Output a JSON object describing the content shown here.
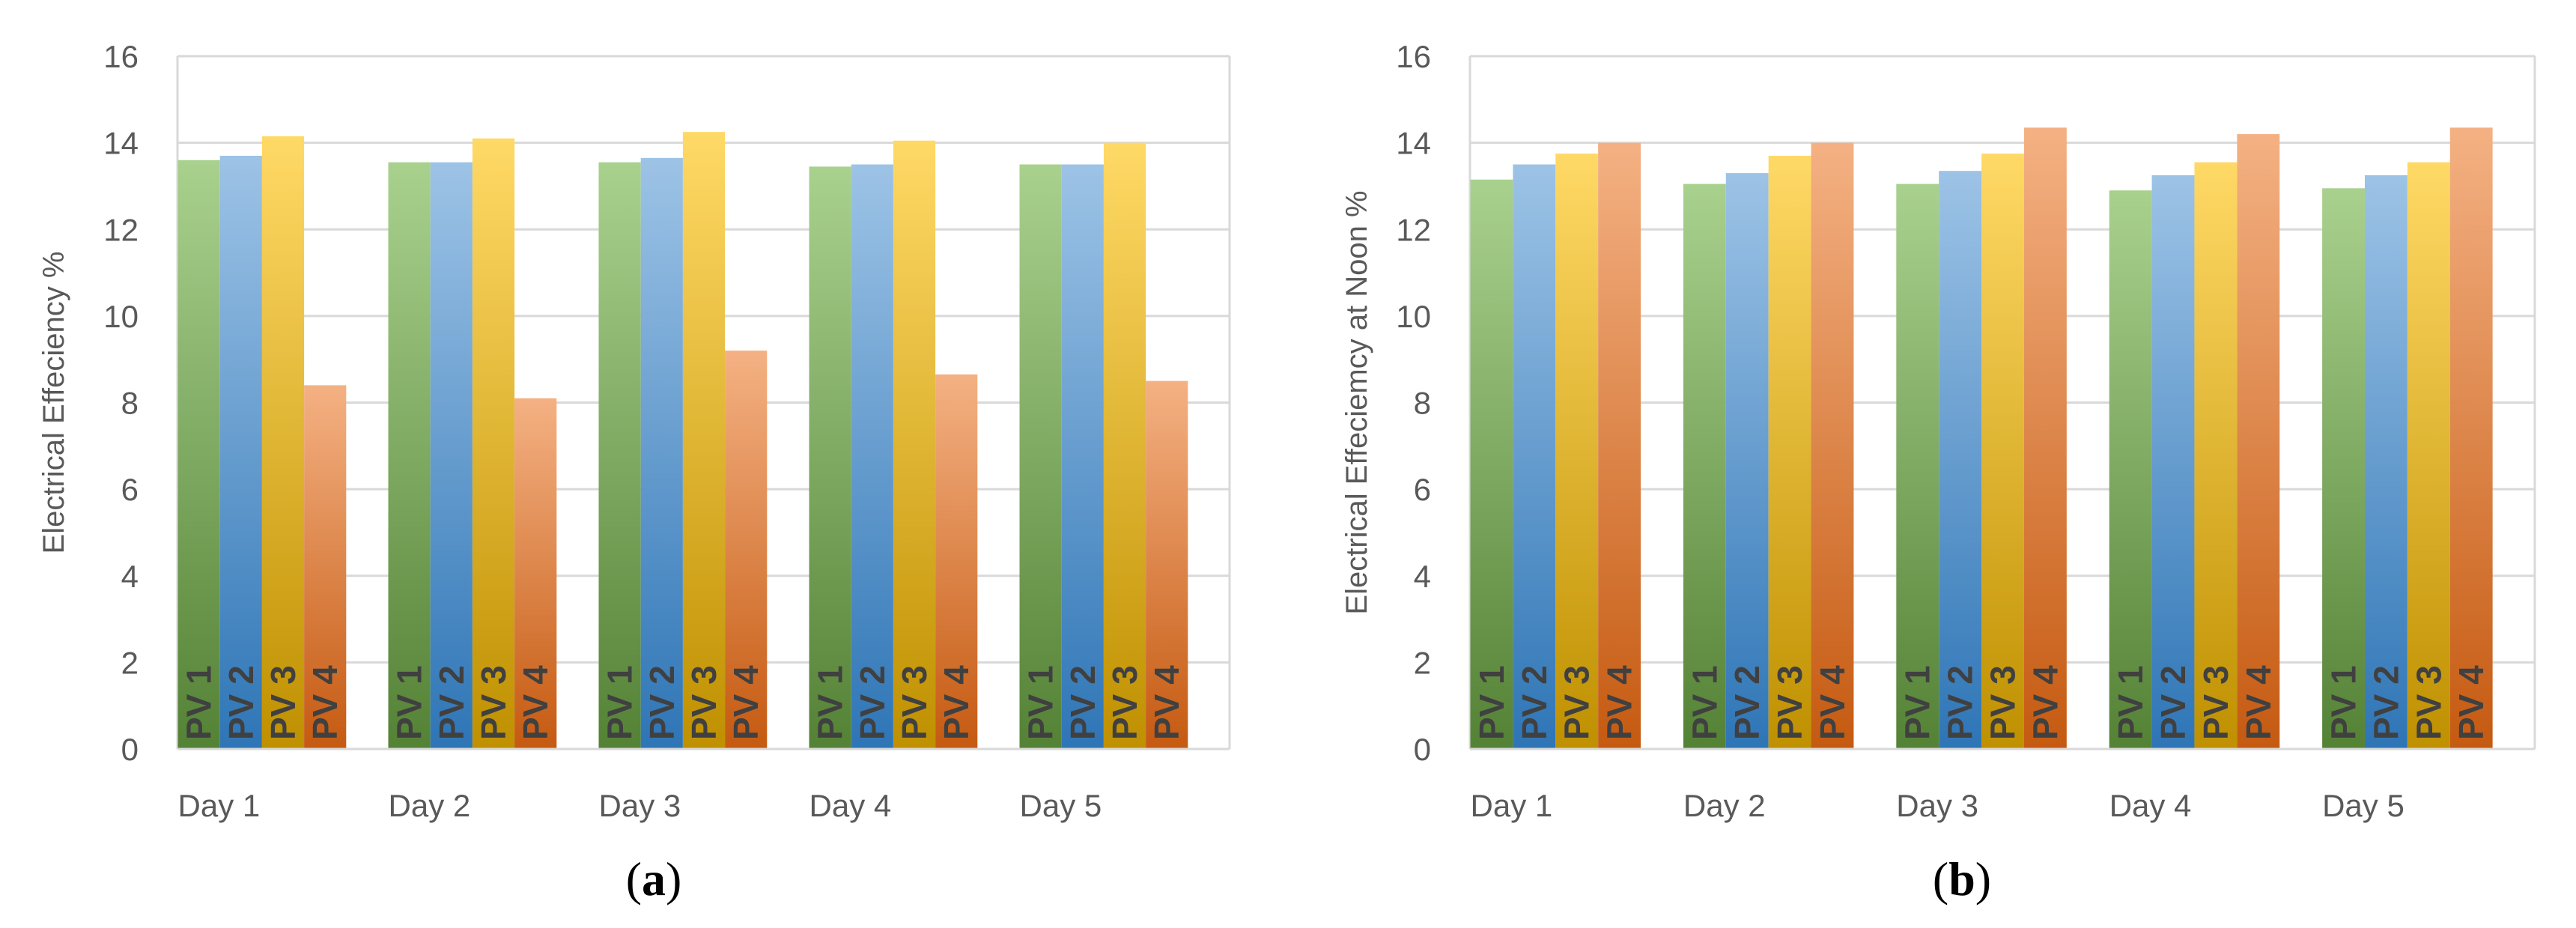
{
  "series_colors": {
    "PV 1": {
      "top": "#a9d18e",
      "bottom": "#548235"
    },
    "PV 2": {
      "top": "#9dc3e6",
      "bottom": "#2e75b6"
    },
    "PV 3": {
      "top": "#ffd966",
      "bottom": "#bf9000"
    },
    "PV 4": {
      "top": "#f4b183",
      "bottom": "#c55a11"
    }
  },
  "chart_data": [
    {
      "type": "bar",
      "panel": "a",
      "categories": [
        "Day 1",
        "Day 2",
        "Day 3",
        "Day 4",
        "Day 5"
      ],
      "series": [
        {
          "name": "PV 1",
          "values": [
            13.6,
            13.55,
            13.55,
            13.45,
            13.5
          ]
        },
        {
          "name": "PV 2",
          "values": [
            13.7,
            13.55,
            13.65,
            13.5,
            13.5
          ]
        },
        {
          "name": "PV 3",
          "values": [
            14.15,
            14.1,
            14.25,
            14.05,
            14.0
          ]
        },
        {
          "name": "PV 4",
          "values": [
            8.4,
            8.1,
            9.2,
            8.65,
            8.5
          ]
        }
      ],
      "title": "",
      "xlabel": "",
      "ylabel": "Electrical Effeciency %",
      "ylim": [
        0,
        16
      ],
      "yticks": [
        0,
        2,
        4,
        6,
        8,
        10,
        12,
        14,
        16
      ],
      "grid": true,
      "legend": "none (labels inside bars)"
    },
    {
      "type": "bar",
      "panel": "b",
      "categories": [
        "Day 1",
        "Day 2",
        "Day 3",
        "Day 4",
        "Day 5"
      ],
      "series": [
        {
          "name": "PV 1",
          "values": [
            13.15,
            13.05,
            13.05,
            12.9,
            12.95
          ]
        },
        {
          "name": "PV 2",
          "values": [
            13.5,
            13.3,
            13.35,
            13.25,
            13.25
          ]
        },
        {
          "name": "PV 3",
          "values": [
            13.75,
            13.7,
            13.75,
            13.55,
            13.55
          ]
        },
        {
          "name": "PV 4",
          "values": [
            14.0,
            14.0,
            14.35,
            14.2,
            14.35
          ]
        }
      ],
      "title": "",
      "xlabel": "",
      "ylabel": "Electrical Effeciemcy at Noon %",
      "ylim": [
        0,
        16
      ],
      "yticks": [
        0,
        2,
        4,
        6,
        8,
        10,
        12,
        14,
        16
      ],
      "grid": true,
      "legend": "none (labels inside bars)"
    }
  ],
  "panel_labels": [
    "(a)",
    "(b)"
  ],
  "panel_letters": [
    "a",
    "b"
  ]
}
